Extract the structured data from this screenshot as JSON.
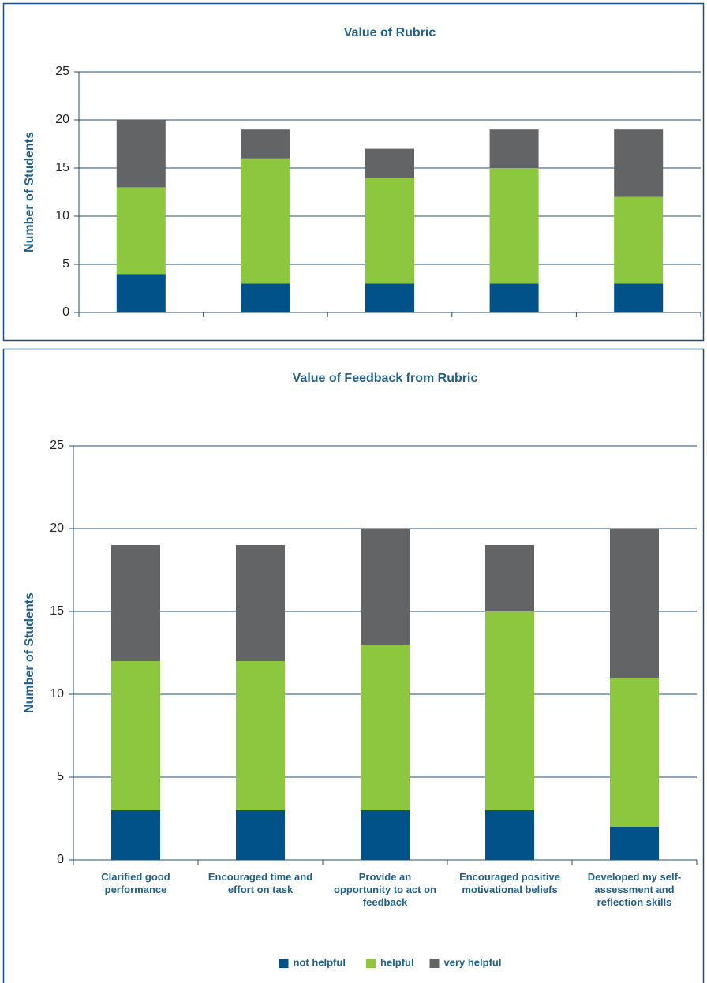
{
  "chart_data": [
    {
      "type": "bar",
      "stacked": true,
      "title": "Value of Rubric",
      "y_label": "Number of Students",
      "categories": [
        null,
        null,
        null,
        null,
        null
      ],
      "series": [
        {
          "color": "#005288",
          "values": [
            4,
            3,
            3,
            3,
            3
          ]
        },
        {
          "color": "#8dc63f",
          "values": [
            9,
            13,
            11,
            12,
            9
          ]
        },
        {
          "color": "#636466",
          "values": [
            7,
            3,
            3,
            4,
            7
          ]
        }
      ],
      "ylim": [
        0,
        25
      ],
      "yticks": [
        0,
        5,
        10,
        15,
        20,
        25
      ],
      "grid": true
    },
    {
      "type": "bar",
      "stacked": true,
      "title": "Value of Feedback from Rubric",
      "y_label": "Number of Students",
      "categories": [
        "Clarified good performance",
        "Encouraged time and effort on task",
        "Provide an opportunity to act on feedback",
        "Encouraged positive motivational beliefs",
        "Developed my self-assessment and reflection skills"
      ],
      "series": [
        {
          "name": "not helpful",
          "color": "#005288",
          "values": [
            3,
            3,
            3,
            3,
            2
          ]
        },
        {
          "name": "helpful",
          "color": "#8dc63f",
          "values": [
            9,
            9,
            10,
            12,
            9
          ]
        },
        {
          "name": "very helpful",
          "color": "#636466",
          "values": [
            7,
            7,
            7,
            4,
            9
          ]
        }
      ],
      "ylim": [
        0,
        25
      ],
      "yticks": [
        0,
        5,
        10,
        15,
        20,
        25
      ],
      "grid": true,
      "legend": "bottom"
    }
  ]
}
